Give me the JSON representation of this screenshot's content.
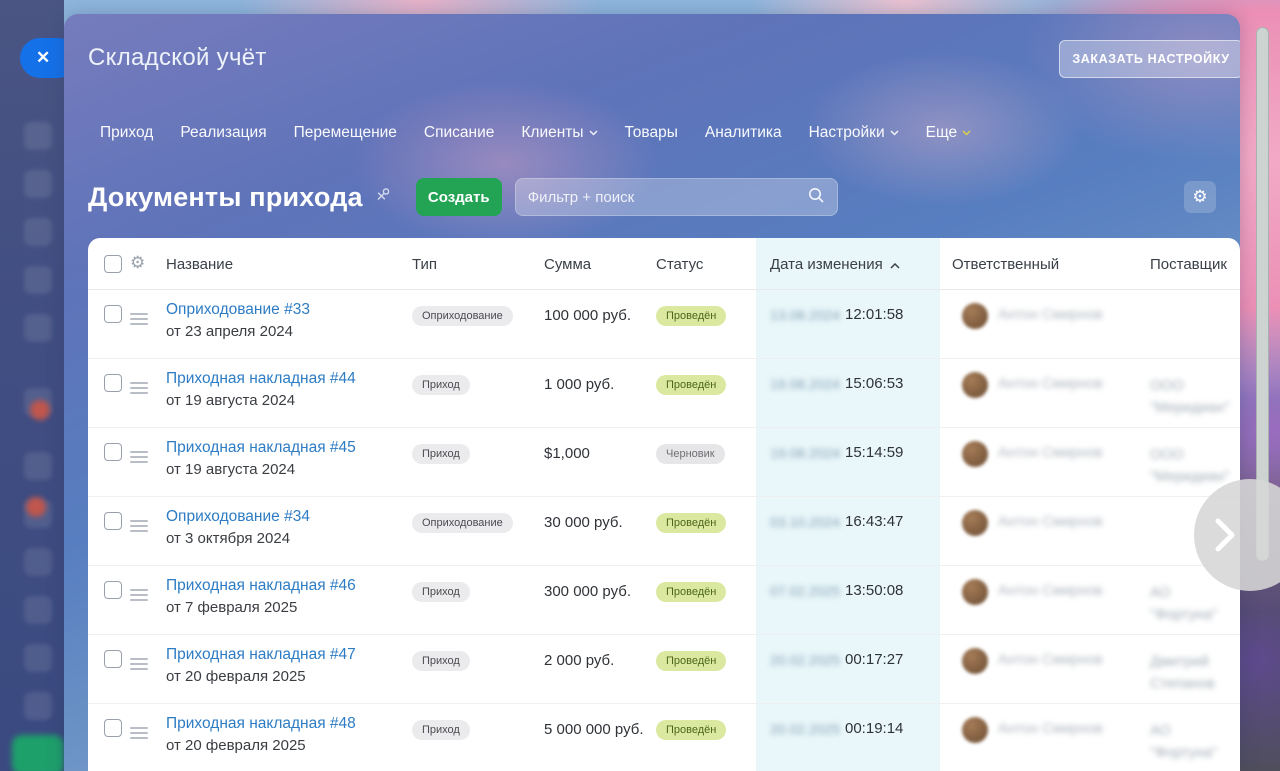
{
  "colors": {
    "accent_green": "#23a455",
    "link_blue": "#2d7cc4",
    "status_posted_bg": "#dbe9a0",
    "status_draft_bg": "#e6e6e8",
    "date_column_highlight": "#e9f7fa",
    "sidebar_navy": "#3e4c7e",
    "close_pill_blue": "#1571e8",
    "new_caret_yellow": "#d8d24a"
  },
  "window": {
    "close_glyph": "✕"
  },
  "header": {
    "app_title": "Складской учёт",
    "order_button_label": "ЗАКАЗАТЬ НАСТРОЙКУ"
  },
  "nav": {
    "items": [
      {
        "label": "Приход",
        "dropdown": false,
        "highlight_caret": false
      },
      {
        "label": "Реализация",
        "dropdown": false,
        "highlight_caret": false
      },
      {
        "label": "Перемещение",
        "dropdown": false,
        "highlight_caret": false
      },
      {
        "label": "Списание",
        "dropdown": false,
        "highlight_caret": false
      },
      {
        "label": "Клиенты",
        "dropdown": true,
        "highlight_caret": false
      },
      {
        "label": "Товары",
        "dropdown": false,
        "highlight_caret": false
      },
      {
        "label": "Аналитика",
        "dropdown": false,
        "highlight_caret": false
      },
      {
        "label": "Настройки",
        "dropdown": true,
        "highlight_caret": false
      },
      {
        "label": "Еще",
        "dropdown": true,
        "highlight_caret": true
      }
    ]
  },
  "toolbar": {
    "title": "Документы прихода",
    "create_label": "Создать",
    "search_placeholder": "Фильтр + поиск"
  },
  "table": {
    "columns": {
      "name": "Название",
      "type": "Тип",
      "sum": "Сумма",
      "status": "Статус",
      "date": "Дата изменения",
      "responsible": "Ответственный",
      "supplier": "Поставщик"
    },
    "sort": {
      "column": "Дата изменения",
      "direction": "asc"
    },
    "rows": [
      {
        "name": "Оприходование #33",
        "subtitle": "от 23 апреля 2024",
        "type": "Оприходование",
        "sum": "100 000 руб.",
        "status": "Проведён",
        "status_kind": "posted",
        "date": "13.08.2024",
        "time": "12:01:58",
        "responsible": "Антон Смирнов",
        "supplier": ""
      },
      {
        "name": "Приходная накладная #44",
        "subtitle": "от 19 августа 2024",
        "type": "Приход",
        "sum": "1 000 руб.",
        "status": "Проведён",
        "status_kind": "posted",
        "date": "19.08.2024",
        "time": "15:06:53",
        "responsible": "Антон Смирнов",
        "supplier": "ООО \"Меридиан\""
      },
      {
        "name": "Приходная накладная #45",
        "subtitle": "от 19 августа 2024",
        "type": "Приход",
        "sum": "$1,000",
        "status": "Черновик",
        "status_kind": "draft",
        "date": "19.08.2024",
        "time": "15:14:59",
        "responsible": "Антон Смирнов",
        "supplier": "ООО \"Меридиан\""
      },
      {
        "name": "Оприходование #34",
        "subtitle": "от 3 октября 2024",
        "type": "Оприходование",
        "sum": "30 000 руб.",
        "status": "Проведён",
        "status_kind": "posted",
        "date": "03.10.2024",
        "time": "16:43:47",
        "responsible": "Антон Смирнов",
        "supplier": ""
      },
      {
        "name": "Приходная накладная #46",
        "subtitle": "от 7 февраля 2025",
        "type": "Приход",
        "sum": "300 000 руб.",
        "status": "Проведён",
        "status_kind": "posted",
        "date": "07.02.2025",
        "time": "13:50:08",
        "responsible": "Антон Смирнов",
        "supplier": "АО \"Фортуна\""
      },
      {
        "name": "Приходная накладная #47",
        "subtitle": "от 20 февраля 2025",
        "type": "Приход",
        "sum": "2 000 руб.",
        "status": "Проведён",
        "status_kind": "posted",
        "date": "20.02.2025",
        "time": "00:17:27",
        "responsible": "Антон Смирнов",
        "supplier": "Дмитрий Степанов"
      },
      {
        "name": "Приходная накладная #48",
        "subtitle": "от 20 февраля 2025",
        "type": "Приход",
        "sum": "5 000 000 руб.",
        "status": "Проведён",
        "status_kind": "posted",
        "date": "20.02.2025",
        "time": "00:19:14",
        "responsible": "Антон Смирнов",
        "supplier": "АО \"Фортуна\""
      }
    ]
  }
}
